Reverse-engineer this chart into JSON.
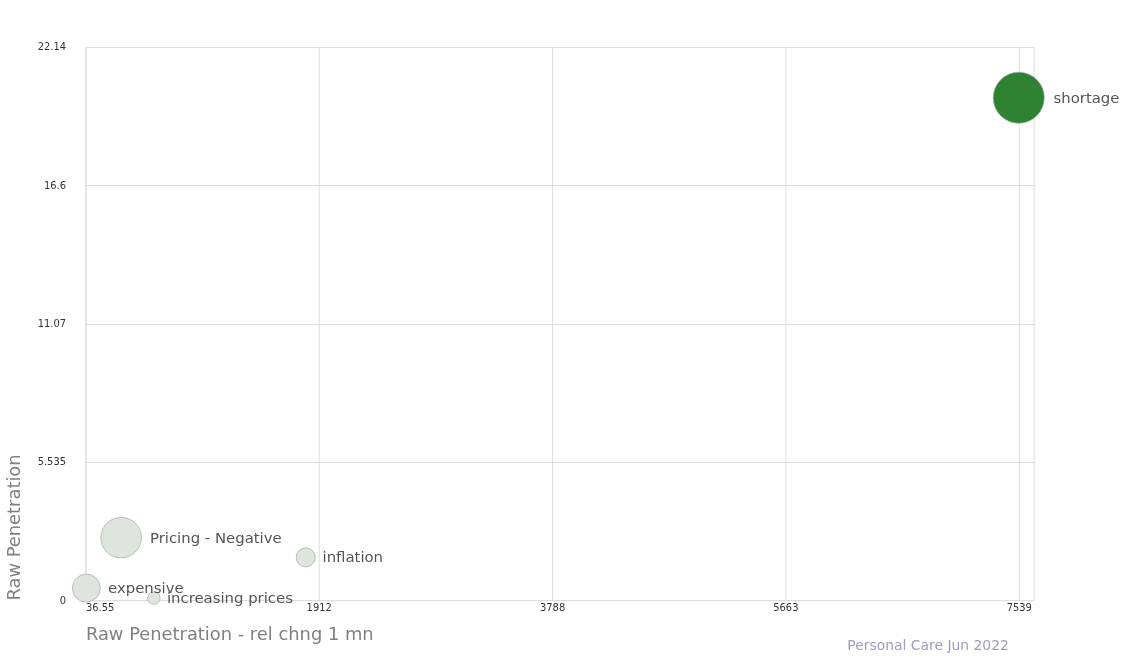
{
  "chart_data": {
    "type": "bubble",
    "xlabel": "Raw Penetration - rel chng 1 mn",
    "ylabel": "Raw Penetration",
    "xlim": [
      36.55,
      7659
    ],
    "xticks": [
      36.55,
      1912,
      3788,
      5663,
      7539
    ],
    "ylim": [
      0,
      22.14
    ],
    "yticks": [
      0,
      5.535,
      11.07,
      16.6,
      22.14
    ],
    "grid": true,
    "legend": false,
    "annotations": [
      "Personal Care  Jun 2022"
    ],
    "series": [
      {
        "name": "shortage",
        "color": "#2e8232",
        "x": [
          7539
        ],
        "values": [
          20.11
        ],
        "sizes": [
          1
        ]
      },
      {
        "name": "Pricing - Negative",
        "color": "#dde5dd",
        "x": [
          324
        ],
        "values": [
          2.5
        ],
        "sizes": [
          0.63
        ]
      },
      {
        "name": "inflation",
        "color": "#dde5dd",
        "x": [
          1808
        ],
        "values": [
          1.71
        ],
        "sizes": [
          0.14
        ]
      },
      {
        "name": "expensive",
        "color": "#dde5dd",
        "x": [
          44
        ],
        "values": [
          0.48
        ],
        "sizes": [
          0.3
        ]
      },
      {
        "name": "increasing prices",
        "color": "#dde5dd",
        "x": [
          587
        ],
        "values": [
          0.08
        ],
        "sizes": [
          0.06
        ]
      }
    ]
  }
}
